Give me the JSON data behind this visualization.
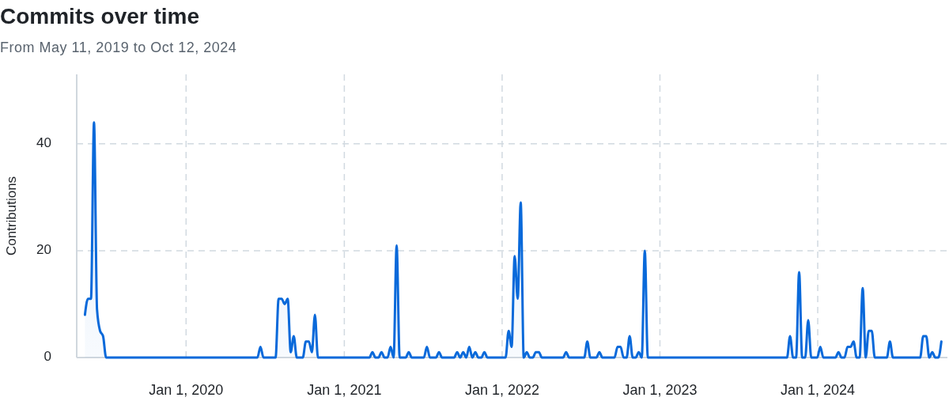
{
  "chart_data": {
    "type": "area",
    "title": "Commits over time",
    "subtitle": "From May 11, 2019 to Oct 12, 2024",
    "ylabel": "Contributions",
    "color": "#0969da",
    "x": [
      "2019-05-12",
      "2019-05-19",
      "2019-05-26",
      "2019-06-02",
      "2019-06-09",
      "2019-06-16",
      "2019-06-23",
      "2019-06-30",
      "2020-06-14",
      "2020-06-21",
      "2020-06-28",
      "2020-07-26",
      "2020-08-02",
      "2020-08-09",
      "2020-08-16",
      "2020-08-23",
      "2020-08-30",
      "2020-09-06",
      "2020-09-13",
      "2020-09-27",
      "2020-10-04",
      "2020-10-11",
      "2020-10-18",
      "2020-10-25",
      "2020-11-01",
      "2021-02-28",
      "2021-03-07",
      "2021-03-14",
      "2021-03-21",
      "2021-03-28",
      "2021-04-04",
      "2021-04-11",
      "2021-04-18",
      "2021-04-25",
      "2021-05-02",
      "2021-05-09",
      "2021-05-23",
      "2021-05-30",
      "2021-06-06",
      "2021-07-04",
      "2021-07-11",
      "2021-07-18",
      "2021-08-01",
      "2021-08-08",
      "2021-08-15",
      "2021-09-12",
      "2021-09-19",
      "2021-09-26",
      "2021-10-03",
      "2021-10-10",
      "2021-10-17",
      "2021-10-24",
      "2021-10-31",
      "2021-11-07",
      "2021-11-14",
      "2021-11-21",
      "2021-11-28",
      "2022-01-09",
      "2022-01-16",
      "2022-01-23",
      "2022-01-30",
      "2022-02-06",
      "2022-02-13",
      "2022-02-20",
      "2022-02-27",
      "2022-03-06",
      "2022-03-13",
      "2022-03-20",
      "2022-03-27",
      "2022-04-03",
      "2022-05-22",
      "2022-05-29",
      "2022-06-05",
      "2022-07-10",
      "2022-07-17",
      "2022-07-24",
      "2022-08-07",
      "2022-08-14",
      "2022-08-21",
      "2022-09-18",
      "2022-09-25",
      "2022-10-02",
      "2022-10-09",
      "2022-10-16",
      "2022-10-23",
      "2022-10-30",
      "2022-11-06",
      "2022-11-13",
      "2022-11-20",
      "2022-11-27",
      "2022-12-04",
      "2023-10-22",
      "2023-10-29",
      "2023-11-05",
      "2023-11-12",
      "2023-11-19",
      "2023-11-26",
      "2023-12-03",
      "2023-12-10",
      "2023-12-17",
      "2023-12-31",
      "2024-01-07",
      "2024-01-14",
      "2024-02-11",
      "2024-02-18",
      "2024-02-25",
      "2024-03-03",
      "2024-03-10",
      "2024-03-17",
      "2024-03-24",
      "2024-03-31",
      "2024-04-07",
      "2024-04-14",
      "2024-04-21",
      "2024-04-28",
      "2024-05-05",
      "2024-05-12",
      "2024-06-09",
      "2024-06-16",
      "2024-06-23",
      "2024-08-25",
      "2024-09-01",
      "2024-09-08",
      "2024-09-15",
      "2024-09-22",
      "2024-09-29",
      "2024-10-06",
      "2024-10-13"
    ],
    "values": [
      8,
      11,
      11,
      44,
      9,
      5,
      4,
      0,
      0,
      2,
      0,
      0,
      11,
      11,
      10,
      11,
      1,
      4,
      0,
      0,
      3,
      3,
      1,
      8,
      0,
      0,
      1,
      0,
      0,
      1,
      0,
      0,
      2,
      0,
      21,
      0,
      0,
      1,
      0,
      0,
      2,
      0,
      0,
      1,
      0,
      0,
      1,
      0,
      1,
      0,
      2,
      0,
      1,
      0,
      0,
      1,
      0,
      0,
      5,
      2,
      19,
      11,
      29,
      0,
      1,
      0,
      0,
      1,
      1,
      0,
      0,
      1,
      0,
      0,
      3,
      0,
      0,
      1,
      0,
      0,
      2,
      2,
      0,
      0,
      4,
      0,
      0,
      1,
      0,
      20,
      0,
      0,
      4,
      0,
      0,
      16,
      0,
      0,
      7,
      0,
      0,
      2,
      0,
      0,
      1,
      0,
      0,
      2,
      2,
      3,
      0,
      0,
      13,
      0,
      5,
      5,
      0,
      0,
      3,
      0,
      0,
      4,
      4,
      0,
      1,
      0,
      0,
      3
    ],
    "xlim": [
      "2019-04-23",
      "2024-10-27"
    ],
    "xticks": [
      {
        "value": "2020-01-01",
        "label": "Jan 1, 2020"
      },
      {
        "value": "2021-01-01",
        "label": "Jan 1, 2021"
      },
      {
        "value": "2022-01-01",
        "label": "Jan 1, 2022"
      },
      {
        "value": "2023-01-01",
        "label": "Jan 1, 2023"
      },
      {
        "value": "2024-01-01",
        "label": "Jan 1, 2024"
      }
    ],
    "ylim": [
      0,
      53
    ],
    "yticks": [
      0,
      20,
      40
    ],
    "grid": true
  }
}
